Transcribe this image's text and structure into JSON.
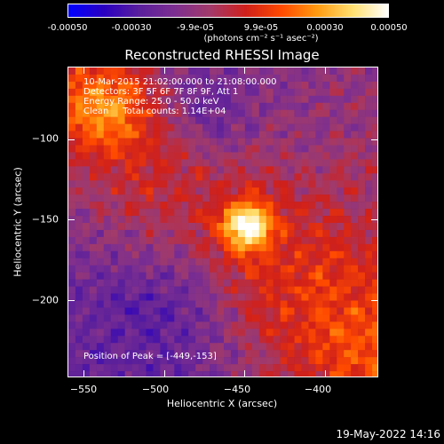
{
  "colorbar": {
    "gradient_stops": [
      "#0000ff",
      "#2a00c0",
      "#5a1f9c",
      "#7d2f90",
      "#a23a6a",
      "#d0201a",
      "#ff4a00",
      "#ff9a10",
      "#ffe070",
      "#ffffff"
    ],
    "tick_labels": [
      "-0.00050",
      "-0.00030",
      "-9.9e-05",
      "9.9e-05",
      "0.00030",
      "0.00050"
    ],
    "unit_label": "(photons cm⁻² s⁻¹ asec⁻²)"
  },
  "chart_data": {
    "type": "heatmap",
    "title": "Reconstructed RHESSI Image",
    "xlabel": "Heliocentric X (arcsec)",
    "ylabel": "Heliocentric Y (arcsec)",
    "xlim": [
      -560,
      -367
    ],
    "ylim": [
      -248,
      -55
    ],
    "x_ticks": [
      -550,
      -500,
      -450,
      -400
    ],
    "x_tick_labels": [
      "−550",
      "−500",
      "−450",
      "−400"
    ],
    "y_ticks": [
      -100,
      -150,
      -200
    ],
    "y_tick_labels": [
      "−100",
      "−150",
      "−200"
    ],
    "peak_position": [
      -449,
      -153
    ],
    "color_range": [
      -0.0005,
      0.0005
    ]
  },
  "annotations": {
    "time_range": "10-Mar-2015 21:02:00.000 to 21:08:00.000",
    "detectors": "Detectors: 3F 5F 6F 7F 8F 9F, Att 1",
    "energy_range": "Energy Range: 25.0 - 50.0 keV",
    "clean_counts": "Clean     Total counts: 1.14E+04",
    "peak_text": "Position of Peak = [-449,-153]"
  },
  "timestamp": "19-May-2022 14:16"
}
